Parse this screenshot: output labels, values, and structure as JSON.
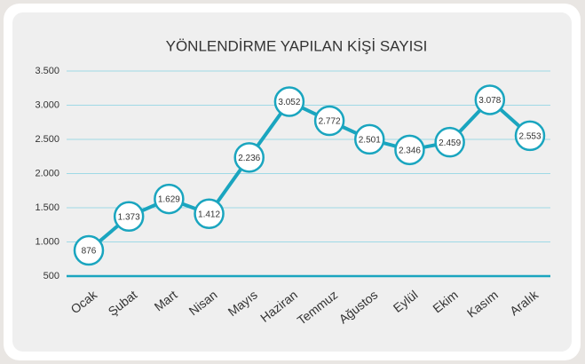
{
  "chart_data": {
    "type": "line",
    "title": "YÖNLENDİRME YAPILAN KİŞİ SAYISI",
    "categories": [
      "Ocak",
      "Şubat",
      "Mart",
      "Nisan",
      "Mayıs",
      "Haziran",
      "Temmuz",
      "Ağustos",
      "Eylül",
      "Ekim",
      "Kasım",
      "Aralık"
    ],
    "series": [
      {
        "name": "Kişi Sayısı",
        "color": "#1aa5bf",
        "values": [
          876,
          1373,
          1629,
          1412,
          2236,
          3052,
          2772,
          2501,
          2346,
          2459,
          3078,
          2553
        ],
        "value_labels": [
          "876",
          "1.373",
          "1.629",
          "1.412",
          "2.236",
          "3.052",
          "2.772",
          "2.501",
          "2.346",
          "2.459",
          "3.078",
          "2.553"
        ]
      }
    ],
    "ylim": [
      500,
      3500
    ],
    "yticks": [
      500,
      {
        "value": 1000,
        "label": "1.000"
      },
      {
        "value": 1500,
        "label": "1.500"
      },
      {
        "value": 2000,
        "label": "2.000"
      },
      {
        "value": 2500,
        "label": "2.500"
      },
      {
        "value": 3000,
        "label": "3.000"
      },
      {
        "value": 3500,
        "label": "3.500"
      }
    ],
    "grid": true
  }
}
